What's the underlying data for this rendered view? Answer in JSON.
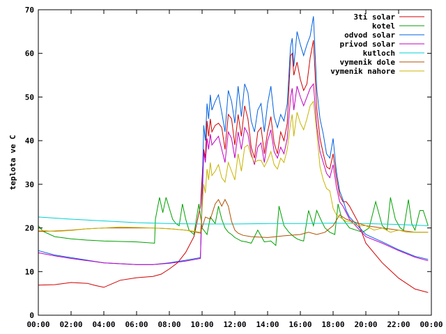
{
  "chart_data": {
    "type": "line",
    "title": "",
    "xlabel": "",
    "ylabel": "teplota ve C",
    "xlim": [
      0,
      24
    ],
    "ylim": [
      0,
      70
    ],
    "x_ticks": [
      0,
      2,
      4,
      6,
      8,
      10,
      12,
      14,
      16,
      18,
      20,
      22,
      24
    ],
    "x_tick_labels": [
      "00:00",
      "02:00",
      "04:00",
      "06:00",
      "08:00",
      "10:00",
      "12:00",
      "14:00",
      "16:00",
      "18:00",
      "20:00",
      "22:00",
      "00:00"
    ],
    "y_ticks": [
      0,
      10,
      20,
      30,
      40,
      50,
      60,
      70
    ],
    "y_tick_labels": [
      "0",
      "10",
      "20",
      "30",
      "40",
      "50",
      "60",
      "70"
    ],
    "grid": false,
    "legend_position": "top-right",
    "series": [
      {
        "name": "3ti solar",
        "color": "#d00000",
        "x": [
          0,
          1,
          2,
          3,
          3.5,
          4,
          4.5,
          5,
          6,
          7,
          7.5,
          8,
          8.5,
          9,
          9.5,
          9.9,
          10.1,
          10.2,
          10.3,
          10.4,
          10.5,
          10.6,
          10.8,
          11.0,
          11.2,
          11.4,
          11.6,
          11.8,
          12.0,
          12.2,
          12.4,
          12.6,
          12.8,
          13.0,
          13.2,
          13.4,
          13.6,
          13.8,
          14.0,
          14.2,
          14.4,
          14.6,
          14.8,
          15.0,
          15.2,
          15.4,
          15.5,
          15.6,
          15.8,
          16.0,
          16.2,
          16.4,
          16.6,
          16.8,
          17.0,
          17.2,
          17.4,
          17.6,
          17.8,
          18.0,
          18.2,
          18.4,
          18.6,
          18.8,
          19.0,
          19.5,
          20.0,
          21.0,
          22.0,
          23.0,
          23.8
        ],
        "values": [
          6.9,
          7.0,
          7.5,
          7.3,
          6.8,
          6.4,
          7.2,
          8.0,
          8.6,
          8.9,
          9.4,
          10.6,
          12.0,
          14.4,
          18.0,
          25.0,
          38.0,
          36.0,
          44.5,
          41.0,
          45.0,
          42.0,
          43.5,
          44.0,
          43.0,
          38.0,
          46.0,
          45.0,
          39.0,
          46.0,
          41.0,
          48.0,
          45.0,
          38.5,
          36.0,
          42.0,
          43.0,
          37.0,
          42.0,
          45.5,
          39.5,
          37.0,
          42.0,
          40.0,
          44.0,
          59.5,
          60.0,
          55.0,
          58.0,
          54.0,
          51.5,
          53.0,
          59.0,
          63.0,
          47.5,
          40.5,
          37.0,
          34.0,
          33.5,
          37.0,
          31.5,
          27.5,
          26.0,
          26.0,
          25.0,
          21.5,
          16.5,
          12.0,
          8.5,
          6.0,
          5.2
        ]
      },
      {
        "name": "kotel",
        "color": "#00a000",
        "x": [
          0,
          0.3,
          1,
          2,
          3,
          4,
          5,
          6,
          7.1,
          7.15,
          7.4,
          7.6,
          7.8,
          8.0,
          8.2,
          8.4,
          8.6,
          8.8,
          9.0,
          9.2,
          9.5,
          9.8,
          10.0,
          10.3,
          10.5,
          10.8,
          11.0,
          11.2,
          11.4,
          11.6,
          11.8,
          12.0,
          12.4,
          12.7,
          13.0,
          13.4,
          13.8,
          14.2,
          14.5,
          14.7,
          15.0,
          15.3,
          15.6,
          15.8,
          16.0,
          16.2,
          16.5,
          16.8,
          17.0,
          17.3,
          17.5,
          17.8,
          18.1,
          18.3,
          18.5,
          18.8,
          19.0,
          19.4,
          19.8,
          20.2,
          20.6,
          21.0,
          21.3,
          21.5,
          21.8,
          22.1,
          22.3,
          22.6,
          22.8,
          23.0,
          23.3,
          23.5,
          23.8
        ],
        "values": [
          20.5,
          19.2,
          18.0,
          17.5,
          17.2,
          17.0,
          16.9,
          16.8,
          16.5,
          22.0,
          27.0,
          23.5,
          27.0,
          24.5,
          22.0,
          21.0,
          20.5,
          25.5,
          22.0,
          19.5,
          18.5,
          25.5,
          20.0,
          18.5,
          22.5,
          21.0,
          25.0,
          22.0,
          20.0,
          19.0,
          18.5,
          17.8,
          17.0,
          16.8,
          16.5,
          19.5,
          16.8,
          17.0,
          16.0,
          25.0,
          20.5,
          19.0,
          18.0,
          17.5,
          17.2,
          17.0,
          24.0,
          20.5,
          24.0,
          21.5,
          20.0,
          19.0,
          18.5,
          25.5,
          22.5,
          21.0,
          20.0,
          19.5,
          19.0,
          20.0,
          26.0,
          20.5,
          19.5,
          27.0,
          22.0,
          20.0,
          19.5,
          26.5,
          21.0,
          19.5,
          24.0,
          24.0,
          20.5
        ]
      },
      {
        "name": "odvod solar",
        "color": "#0060e0",
        "x": [
          0,
          1,
          2,
          3,
          4,
          5,
          6,
          7,
          8,
          9,
          9.9,
          10.1,
          10.2,
          10.3,
          10.4,
          10.5,
          10.6,
          10.8,
          11.0,
          11.2,
          11.4,
          11.6,
          11.8,
          12.0,
          12.2,
          12.4,
          12.6,
          12.8,
          13.0,
          13.2,
          13.4,
          13.6,
          13.8,
          14.0,
          14.2,
          14.4,
          14.6,
          14.8,
          15.0,
          15.2,
          15.4,
          15.5,
          15.6,
          15.8,
          16.0,
          16.2,
          16.4,
          16.6,
          16.8,
          17.0,
          17.2,
          17.4,
          17.6,
          17.8,
          18.0,
          18.2,
          18.4,
          18.6,
          18.8,
          19.0,
          19.5,
          20.0,
          21.0,
          22.0,
          23.0,
          23.8
        ],
        "values": [
          14.8,
          13.8,
          13.2,
          12.6,
          12.0,
          11.8,
          11.6,
          11.6,
          12.0,
          12.6,
          13.2,
          43.5,
          40.0,
          48.5,
          45.0,
          50.5,
          47.0,
          49.0,
          50.5,
          46.5,
          42.0,
          51.5,
          49.0,
          44.0,
          52.5,
          45.5,
          53.0,
          51.0,
          44.5,
          42.0,
          47.0,
          48.5,
          42.0,
          48.5,
          52.5,
          45.5,
          43.0,
          46.0,
          44.5,
          48.5,
          61.5,
          63.5,
          57.0,
          65.0,
          62.0,
          59.5,
          62.0,
          64.0,
          68.5,
          52.0,
          45.0,
          41.5,
          37.0,
          36.0,
          40.5,
          33.0,
          28.5,
          26.5,
          24.0,
          22.5,
          20.5,
          18.5,
          16.8,
          15.0,
          13.5,
          12.8
        ]
      },
      {
        "name": "privod solar",
        "color": "#c000c0",
        "x": [
          0,
          1,
          2,
          3,
          4,
          5,
          6,
          7,
          8,
          9,
          9.9,
          10.1,
          10.2,
          10.3,
          10.4,
          10.5,
          10.6,
          10.8,
          11.0,
          11.2,
          11.4,
          11.6,
          11.8,
          12.0,
          12.2,
          12.4,
          12.6,
          12.8,
          13.0,
          13.2,
          13.4,
          13.6,
          13.8,
          14.0,
          14.2,
          14.4,
          14.6,
          14.8,
          15.0,
          15.2,
          15.4,
          15.5,
          15.6,
          15.8,
          16.0,
          16.2,
          16.4,
          16.6,
          16.8,
          17.0,
          17.2,
          17.4,
          17.6,
          17.8,
          18.0,
          18.2,
          18.4,
          18.6,
          18.8,
          19.0,
          19.5,
          20.0,
          21.0,
          22.0,
          23.0,
          23.8
        ],
        "values": [
          14.3,
          13.6,
          13.0,
          12.5,
          12.0,
          11.8,
          11.6,
          11.6,
          11.9,
          12.4,
          13.0,
          37.5,
          35.0,
          40.5,
          38.0,
          41.5,
          39.0,
          40.0,
          41.0,
          38.0,
          35.0,
          42.0,
          40.5,
          36.0,
          42.0,
          38.0,
          43.0,
          41.5,
          37.0,
          34.5,
          38.5,
          39.5,
          35.0,
          40.0,
          42.5,
          37.5,
          36.0,
          38.5,
          37.0,
          40.5,
          50.0,
          52.0,
          47.0,
          52.5,
          50.0,
          48.0,
          50.0,
          52.0,
          53.0,
          43.5,
          37.5,
          35.0,
          32.5,
          31.5,
          34.5,
          29.5,
          26.0,
          25.0,
          23.5,
          22.0,
          20.0,
          18.0,
          16.5,
          14.8,
          13.3,
          12.5
        ]
      },
      {
        "name": "kutloch",
        "color": "#00d0d0",
        "x": [
          0,
          2,
          4,
          6,
          8,
          10,
          12,
          14,
          16,
          18,
          20,
          22,
          23.8
        ],
        "values": [
          22.5,
          22.0,
          21.6,
          21.2,
          21.0,
          20.9,
          20.9,
          21.0,
          21.0,
          21.1,
          21.0,
          20.8,
          20.5
        ]
      },
      {
        "name": "vymenik dole",
        "color": "#b05000",
        "x": [
          0,
          1,
          2,
          3,
          4,
          5,
          6,
          7,
          8,
          9,
          9.9,
          10.2,
          10.5,
          10.8,
          11.0,
          11.2,
          11.4,
          11.6,
          11.8,
          12.0,
          12.2,
          12.5,
          13.0,
          14.0,
          15.0,
          16.0,
          16.5,
          17.0,
          17.5,
          18.0,
          18.4,
          18.8,
          19.2,
          19.6,
          20.0,
          21.0,
          22.0,
          23.0,
          23.8
        ],
        "values": [
          19.2,
          19.3,
          19.5,
          19.8,
          20.0,
          20.0,
          20.0,
          20.0,
          19.8,
          19.5,
          18.8,
          22.5,
          22.0,
          25.5,
          26.5,
          25.0,
          26.5,
          25.0,
          21.5,
          19.5,
          18.8,
          18.3,
          18.0,
          17.8,
          18.2,
          18.5,
          19.0,
          18.5,
          19.0,
          20.5,
          23.0,
          22.0,
          21.5,
          21.0,
          20.5,
          20.0,
          19.5,
          19.0,
          19.0
        ]
      },
      {
        "name": "vymenik nahore",
        "color": "#c8b400",
        "x": [
          0,
          1,
          2,
          3,
          4,
          5,
          6,
          7,
          8,
          9,
          9.9,
          10.1,
          10.2,
          10.3,
          10.4,
          10.5,
          10.6,
          10.8,
          11.0,
          11.2,
          11.4,
          11.6,
          11.8,
          12.0,
          12.2,
          12.4,
          12.6,
          12.8,
          13.0,
          13.2,
          13.4,
          13.6,
          13.8,
          14.0,
          14.2,
          14.4,
          14.6,
          14.8,
          15.0,
          15.2,
          15.4,
          15.5,
          15.6,
          15.8,
          16.0,
          16.2,
          16.4,
          16.6,
          16.8,
          17.0,
          17.2,
          17.4,
          17.6,
          17.8,
          18.0,
          18.2,
          18.4,
          18.6,
          18.8,
          19.0,
          19.5,
          20.0,
          20.5,
          21.0,
          21.5,
          22.0,
          22.5,
          23.0,
          23.8
        ],
        "values": [
          19.5,
          19.2,
          19.4,
          19.8,
          20.0,
          20.2,
          20.1,
          20.0,
          19.8,
          19.5,
          19.0,
          30.0,
          28.0,
          33.5,
          31.0,
          35.0,
          32.0,
          33.0,
          34.5,
          31.5,
          30.5,
          35.0,
          33.0,
          31.0,
          37.0,
          33.0,
          38.5,
          39.0,
          36.5,
          35.0,
          35.5,
          35.5,
          34.0,
          35.5,
          37.5,
          34.5,
          33.5,
          36.0,
          35.0,
          38.0,
          44.0,
          46.0,
          41.0,
          46.5,
          44.0,
          42.5,
          45.0,
          48.0,
          49.0,
          42.0,
          34.0,
          31.0,
          29.0,
          28.5,
          24.5,
          23.0,
          22.5,
          22.0,
          21.5,
          21.5,
          20.5,
          20.5,
          19.5,
          20.0,
          19.0,
          19.5,
          19.0,
          19.0,
          19.0
        ]
      }
    ]
  }
}
